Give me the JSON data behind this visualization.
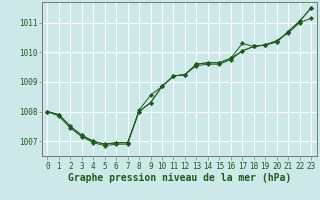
{
  "xlabel": "Graphe pression niveau de la mer (hPa)",
  "xlim_min": -0.5,
  "xlim_max": 23.5,
  "ylim_min": 1006.5,
  "ylim_max": 1011.7,
  "xticks": [
    0,
    1,
    2,
    3,
    4,
    5,
    6,
    7,
    8,
    9,
    10,
    11,
    12,
    13,
    14,
    15,
    16,
    17,
    18,
    19,
    20,
    21,
    22,
    23
  ],
  "yticks": [
    1007,
    1008,
    1009,
    1010,
    1011
  ],
  "background_color": "#cce8e8",
  "grid_color": "#ffffff",
  "line_color": "#1a5c1a",
  "line1_x": [
    0,
    1,
    2,
    3,
    4,
    5,
    6,
    7,
    8,
    9,
    10,
    11,
    12,
    13,
    14,
    15,
    16,
    17,
    18,
    19,
    20,
    21,
    22,
    23
  ],
  "line1_y": [
    1008.0,
    1007.85,
    1007.45,
    1007.15,
    1006.95,
    1006.85,
    1006.9,
    1006.9,
    1008.05,
    1008.55,
    1008.85,
    1009.2,
    1009.25,
    1009.55,
    1009.6,
    1009.6,
    1009.75,
    1010.05,
    1010.2,
    1010.25,
    1010.4,
    1010.65,
    1011.0,
    1011.15
  ],
  "line2_x": [
    0,
    1,
    2,
    3,
    4,
    5,
    6,
    7,
    8,
    9,
    10,
    11,
    12,
    13,
    14,
    15,
    16,
    17,
    18,
    19,
    20,
    21,
    22,
    23
  ],
  "line2_y": [
    1008.0,
    1007.9,
    1007.5,
    1007.2,
    1007.0,
    1006.9,
    1006.95,
    1006.95,
    1008.0,
    1008.3,
    1008.85,
    1009.2,
    1009.25,
    1009.6,
    1009.65,
    1009.65,
    1009.8,
    1010.05,
    1010.2,
    1010.25,
    1010.35,
    1010.7,
    1011.05,
    1011.5
  ],
  "line3_x": [
    0,
    1,
    2,
    3,
    4,
    5,
    6,
    7,
    8,
    9,
    10,
    11,
    12,
    13,
    14,
    15,
    16,
    17,
    18,
    19,
    20,
    21,
    22,
    23
  ],
  "line3_y": [
    1008.0,
    1007.9,
    1007.5,
    1007.2,
    1007.0,
    1006.9,
    1006.95,
    1006.95,
    1008.0,
    1008.3,
    1008.85,
    1009.2,
    1009.25,
    1009.6,
    1009.65,
    1009.65,
    1009.8,
    1010.3,
    1010.2,
    1010.25,
    1010.35,
    1010.7,
    1011.05,
    1011.5
  ],
  "tick_fontsize": 5.5,
  "label_fontsize": 7.0,
  "marker_size": 2.2,
  "linewidth": 0.7
}
